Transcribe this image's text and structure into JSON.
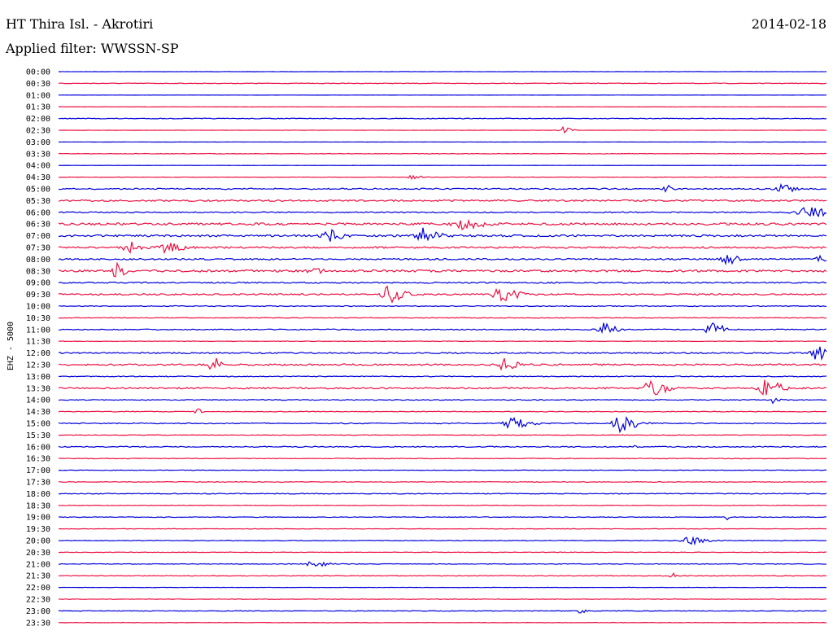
{
  "header": {
    "station": "HT Thira Isl. - Akrotiri",
    "date": "2014-02-18",
    "filter": "Applied filter: WWSSN-SP"
  },
  "colors": {
    "even_trace": "#0000dd",
    "odd_trace": "#ee1144",
    "text": "#000000",
    "background": "#ffffff"
  },
  "chart_data": {
    "type": "line",
    "ylabel": "EHZ - 5000",
    "categories": [
      "00:00",
      "00:30",
      "01:00",
      "01:30",
      "02:00",
      "02:30",
      "03:00",
      "03:30",
      "04:00",
      "04:30",
      "05:00",
      "05:30",
      "06:00",
      "06:30",
      "07:00",
      "07:30",
      "08:00",
      "08:30",
      "09:00",
      "09:30",
      "10:00",
      "10:30",
      "11:00",
      "11:30",
      "12:00",
      "12:30",
      "13:00",
      "13:30",
      "14:00",
      "14:30",
      "15:00",
      "15:30",
      "16:00",
      "16:30",
      "17:00",
      "17:30",
      "18:00",
      "18:30",
      "19:00",
      "19:30",
      "20:00",
      "20:30",
      "21:00",
      "21:30",
      "22:00",
      "22:30",
      "23:00",
      "23:30"
    ],
    "noise_level": [
      0.12,
      0.35,
      0.1,
      0.1,
      0.45,
      0.15,
      0.12,
      0.3,
      0.1,
      0.2,
      0.8,
      1.0,
      0.7,
      1.4,
      1.2,
      1.0,
      0.9,
      1.3,
      0.8,
      0.9,
      0.5,
      0.4,
      0.6,
      0.3,
      0.8,
      1.0,
      0.5,
      0.9,
      0.5,
      0.4,
      0.6,
      0.3,
      0.6,
      0.4,
      0.3,
      0.4,
      0.5,
      0.3,
      0.4,
      0.3,
      0.4,
      0.3,
      0.4,
      0.4,
      0.2,
      0.3,
      0.4,
      0.2
    ],
    "events": [
      {
        "trace": 5,
        "at": 0.655,
        "amp": 4,
        "width": 0.012
      },
      {
        "trace": 9,
        "at": 0.46,
        "amp": 3,
        "width": 0.012
      },
      {
        "trace": 10,
        "at": 0.79,
        "amp": 5,
        "width": 0.008
      },
      {
        "trace": 10,
        "at": 0.94,
        "amp": 6,
        "width": 0.015
      },
      {
        "trace": 12,
        "at": 0.97,
        "amp": 6,
        "width": 0.03
      },
      {
        "trace": 13,
        "at": 0.525,
        "amp": 6,
        "width": 0.025
      },
      {
        "trace": 14,
        "at": 0.35,
        "amp": 8,
        "width": 0.015
      },
      {
        "trace": 14,
        "at": 0.475,
        "amp": 10,
        "width": 0.018
      },
      {
        "trace": 15,
        "at": 0.09,
        "amp": 7,
        "width": 0.015
      },
      {
        "trace": 15,
        "at": 0.14,
        "amp": 6,
        "width": 0.02
      },
      {
        "trace": 16,
        "at": 0.87,
        "amp": 6,
        "width": 0.015
      },
      {
        "trace": 16,
        "at": 0.99,
        "amp": 5,
        "width": 0.01
      },
      {
        "trace": 17,
        "at": 0.075,
        "amp": 9,
        "width": 0.01
      },
      {
        "trace": 17,
        "at": 0.33,
        "amp": 6,
        "width": 0.01
      },
      {
        "trace": 19,
        "at": 0.43,
        "amp": 10,
        "width": 0.02
      },
      {
        "trace": 19,
        "at": 0.575,
        "amp": 10,
        "width": 0.02
      },
      {
        "trace": 22,
        "at": 0.71,
        "amp": 9,
        "width": 0.015
      },
      {
        "trace": 22,
        "at": 0.85,
        "amp": 10,
        "width": 0.015
      },
      {
        "trace": 24,
        "at": 0.985,
        "amp": 9,
        "width": 0.015
      },
      {
        "trace": 25,
        "at": 0.2,
        "amp": 9,
        "width": 0.01
      },
      {
        "trace": 25,
        "at": 0.58,
        "amp": 8,
        "width": 0.015
      },
      {
        "trace": 27,
        "at": 0.77,
        "amp": 10,
        "width": 0.02
      },
      {
        "trace": 27,
        "at": 0.92,
        "amp": 10,
        "width": 0.02
      },
      {
        "trace": 28,
        "at": 0.93,
        "amp": 5,
        "width": 0.008
      },
      {
        "trace": 29,
        "at": 0.18,
        "amp": 4,
        "width": 0.005
      },
      {
        "trace": 30,
        "at": 0.59,
        "amp": 9,
        "width": 0.02
      },
      {
        "trace": 30,
        "at": 0.73,
        "amp": 10,
        "width": 0.02
      },
      {
        "trace": 32,
        "at": 0.75,
        "amp": 4,
        "width": 0.005
      },
      {
        "trace": 38,
        "at": 0.87,
        "amp": 4,
        "width": 0.004
      },
      {
        "trace": 40,
        "at": 0.82,
        "amp": 5,
        "width": 0.02
      },
      {
        "trace": 42,
        "at": 0.33,
        "amp": 3,
        "width": 0.02
      },
      {
        "trace": 43,
        "at": 0.8,
        "amp": 3,
        "width": 0.01
      },
      {
        "trace": 46,
        "at": 0.68,
        "amp": 4,
        "width": 0.006
      }
    ]
  }
}
